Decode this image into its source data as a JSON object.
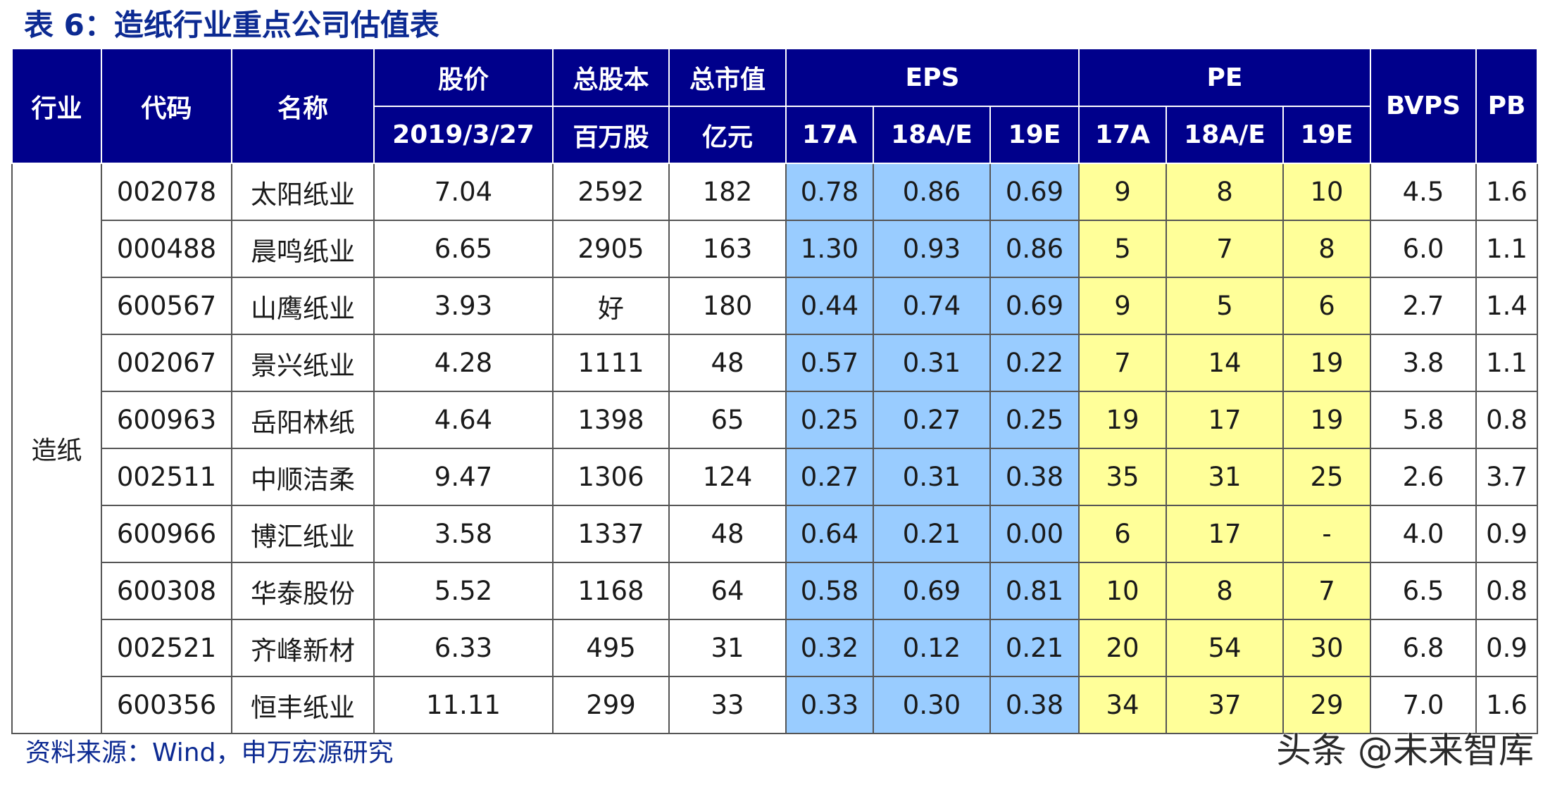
{
  "title": "表 6：造纸行业重点公司估值表",
  "headers": {
    "industry": "行业",
    "code": "代码",
    "name": "名称",
    "price": "股价",
    "price_date": "2019/3/27",
    "shares": "总股本",
    "shares_unit": "百万股",
    "mktcap": "总市值",
    "mktcap_unit": "亿元",
    "eps": "EPS",
    "pe": "PE",
    "years": [
      "17A",
      "18A/E",
      "19E"
    ],
    "bvps": "BVPS",
    "pb": "PB"
  },
  "industry": "造纸",
  "rows": [
    {
      "code": "002078",
      "name": "太阳纸业",
      "price": "7.04",
      "shares": "2592",
      "mktcap": "182",
      "eps": [
        "0.78",
        "0.86",
        "0.69"
      ],
      "pe": [
        "9",
        "8",
        "10"
      ],
      "bvps": "4.5",
      "pb": "1.6"
    },
    {
      "code": "000488",
      "name": "晨鸣纸业",
      "price": "6.65",
      "shares": "2905",
      "mktcap": "163",
      "eps": [
        "1.30",
        "0.93",
        "0.86"
      ],
      "pe": [
        "5",
        "7",
        "8"
      ],
      "bvps": "6.0",
      "pb": "1.1"
    },
    {
      "code": "600567",
      "name": "山鹰纸业",
      "price": "3.93",
      "shares": "好",
      "mktcap": "180",
      "eps": [
        "0.44",
        "0.74",
        "0.69"
      ],
      "pe": [
        "9",
        "5",
        "6"
      ],
      "bvps": "2.7",
      "pb": "1.4"
    },
    {
      "code": "002067",
      "name": "景兴纸业",
      "price": "4.28",
      "shares": "1111",
      "mktcap": "48",
      "eps": [
        "0.57",
        "0.31",
        "0.22"
      ],
      "pe": [
        "7",
        "14",
        "19"
      ],
      "bvps": "3.8",
      "pb": "1.1"
    },
    {
      "code": "600963",
      "name": "岳阳林纸",
      "price": "4.64",
      "shares": "1398",
      "mktcap": "65",
      "eps": [
        "0.25",
        "0.27",
        "0.25"
      ],
      "pe": [
        "19",
        "17",
        "19"
      ],
      "bvps": "5.8",
      "pb": "0.8"
    },
    {
      "code": "002511",
      "name": "中顺洁柔",
      "price": "9.47",
      "shares": "1306",
      "mktcap": "124",
      "eps": [
        "0.27",
        "0.31",
        "0.38"
      ],
      "pe": [
        "35",
        "31",
        "25"
      ],
      "bvps": "2.6",
      "pb": "3.7"
    },
    {
      "code": "600966",
      "name": "博汇纸业",
      "price": "3.58",
      "shares": "1337",
      "mktcap": "48",
      "eps": [
        "0.64",
        "0.21",
        "0.00"
      ],
      "pe": [
        "6",
        "17",
        "-"
      ],
      "bvps": "4.0",
      "pb": "0.9"
    },
    {
      "code": "600308",
      "name": "华泰股份",
      "price": "5.52",
      "shares": "1168",
      "mktcap": "64",
      "eps": [
        "0.58",
        "0.69",
        "0.81"
      ],
      "pe": [
        "10",
        "8",
        "7"
      ],
      "bvps": "6.5",
      "pb": "0.8"
    },
    {
      "code": "002521",
      "name": "齐峰新材",
      "price": "6.33",
      "shares": "495",
      "mktcap": "31",
      "eps": [
        "0.32",
        "0.12",
        "0.21"
      ],
      "pe": [
        "20",
        "54",
        "30"
      ],
      "bvps": "6.8",
      "pb": "0.9"
    },
    {
      "code": "600356",
      "name": "恒丰纸业",
      "price": "11.11",
      "shares": "299",
      "mktcap": "33",
      "eps": [
        "0.33",
        "0.30",
        "0.38"
      ],
      "pe": [
        "34",
        "37",
        "29"
      ],
      "bvps": "7.0",
      "pb": "1.6"
    }
  ],
  "source": "资料来源：Wind，申万宏源研究",
  "watermark": "头条 @未来智库",
  "colors": {
    "header_bg": "#00008b",
    "title": "#0c2a92",
    "eps_bg": "#99ccff",
    "pe_bg": "#ffff99"
  }
}
